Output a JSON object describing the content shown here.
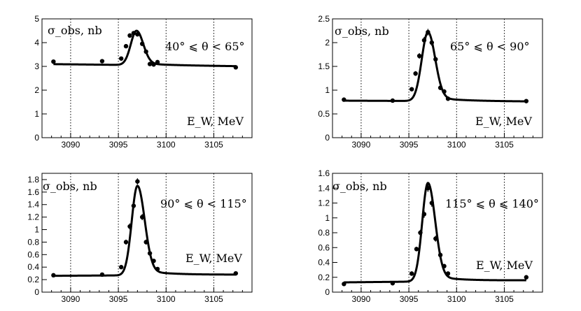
{
  "chart_data": [
    {
      "type": "scatter",
      "ylabel": "σ_obs, nb",
      "xlabel": "E_W, MeV",
      "annotation": "40° ⩽ θ < 65°",
      "xlim": [
        3087,
        3109
      ],
      "ylim": [
        0,
        5
      ],
      "xticks": [
        3090,
        3095,
        3100,
        3105
      ],
      "yticks": [
        0,
        1,
        2,
        3,
        4,
        5
      ],
      "grid": "vertical dotted at x ticks",
      "points": {
        "x": [
          3088.2,
          3093.3,
          3095.3,
          3095.8,
          3096.2,
          3096.6,
          3097.0,
          3097.5,
          3097.9,
          3098.3,
          3098.7,
          3099.1,
          3107.3
        ],
        "y": [
          3.2,
          3.22,
          3.33,
          3.85,
          4.3,
          4.4,
          4.35,
          3.95,
          3.62,
          3.1,
          3.08,
          3.18,
          2.96
        ],
        "yerr": [
          0.06,
          0.06,
          0.07,
          0.08,
          0.09,
          0.09,
          0.09,
          0.08,
          0.08,
          0.07,
          0.07,
          0.08,
          0.06
        ]
      },
      "fit": {
        "base_low": 3.1,
        "base_high": 3.0,
        "peak": 4.5,
        "x0": 3096.9,
        "sigma_left": 0.6,
        "sigma_right": 0.7
      }
    },
    {
      "type": "scatter",
      "ylabel": "σ_obs, nb",
      "xlabel": "E_W, MeV",
      "annotation": "65° ⩽ θ < 90°",
      "xlim": [
        3087,
        3109
      ],
      "ylim": [
        0,
        2.5
      ],
      "xticks": [
        3090,
        3095,
        3100,
        3105
      ],
      "yticks": [
        0,
        0.5,
        1,
        1.5,
        2,
        2.5
      ],
      "grid": "vertical dotted at x ticks",
      "points": {
        "x": [
          3088.2,
          3093.3,
          3095.3,
          3095.7,
          3096.1,
          3096.6,
          3097.0,
          3097.4,
          3097.8,
          3098.3,
          3098.7,
          3099.1,
          3107.3
        ],
        "y": [
          0.8,
          0.78,
          1.02,
          1.35,
          1.72,
          2.05,
          2.22,
          2.0,
          1.65,
          1.05,
          0.97,
          0.82,
          0.77
        ],
        "yerr": [
          0.03,
          0.03,
          0.04,
          0.05,
          0.06,
          0.07,
          0.07,
          0.07,
          0.06,
          0.05,
          0.05,
          0.04,
          0.03
        ]
      },
      "fit": {
        "base_low": 0.78,
        "base_high": 0.76,
        "peak": 2.22,
        "x0": 3097.0,
        "sigma_left": 0.65,
        "sigma_right": 0.75
      }
    },
    {
      "type": "scatter",
      "ylabel": "σ_obs, nb",
      "xlabel": "E_W, MeV",
      "annotation": "90° ⩽ θ < 115°",
      "xlim": [
        3087,
        3109
      ],
      "ylim": [
        0,
        1.9
      ],
      "xticks": [
        3090,
        3095,
        3100,
        3105
      ],
      "yticks": [
        0,
        0.2,
        0.4,
        0.6,
        0.8,
        1,
        1.2,
        1.4,
        1.6,
        1.8
      ],
      "grid": "vertical dotted at x ticks",
      "points": {
        "x": [
          3088.2,
          3093.3,
          3095.3,
          3095.8,
          3096.2,
          3096.6,
          3097.0,
          3097.5,
          3097.9,
          3098.3,
          3098.7,
          3099.1,
          3107.3
        ],
        "y": [
          0.27,
          0.28,
          0.4,
          0.8,
          1.05,
          1.38,
          1.77,
          1.2,
          0.8,
          0.62,
          0.5,
          0.37,
          0.3
        ],
        "yerr": [
          0.02,
          0.02,
          0.03,
          0.04,
          0.05,
          0.05,
          0.05,
          0.05,
          0.04,
          0.04,
          0.03,
          0.03,
          0.02
        ]
      },
      "fit": {
        "base_low": 0.26,
        "base_high": 0.28,
        "peak": 1.7,
        "x0": 3097.0,
        "sigma_left": 0.6,
        "sigma_right": 0.75
      }
    },
    {
      "type": "scatter",
      "ylabel": "σ_obs, nb",
      "xlabel": "E_W, MeV",
      "annotation": "115° ⩽ θ ⩽ 140°",
      "xlim": [
        3087,
        3109
      ],
      "ylim": [
        0,
        1.6
      ],
      "xticks": [
        3090,
        3095,
        3100,
        3105
      ],
      "yticks": [
        0,
        0.2,
        0.4,
        0.6,
        0.8,
        1,
        1.2,
        1.4,
        1.6
      ],
      "grid": "vertical dotted at x ticks",
      "points": {
        "x": [
          3088.2,
          3093.3,
          3095.3,
          3095.8,
          3096.2,
          3096.6,
          3097.0,
          3097.4,
          3097.8,
          3098.3,
          3098.7,
          3099.1,
          3107.3
        ],
        "y": [
          0.11,
          0.12,
          0.25,
          0.58,
          0.8,
          1.05,
          1.4,
          1.2,
          0.72,
          0.5,
          0.35,
          0.25,
          0.2
        ],
        "yerr": [
          0.02,
          0.02,
          0.03,
          0.03,
          0.04,
          0.05,
          0.05,
          0.05,
          0.04,
          0.04,
          0.03,
          0.03,
          0.02
        ]
      },
      "fit": {
        "base_low": 0.13,
        "base_high": 0.16,
        "peak": 1.47,
        "x0": 3097.0,
        "sigma_left": 0.6,
        "sigma_right": 0.75
      }
    }
  ]
}
